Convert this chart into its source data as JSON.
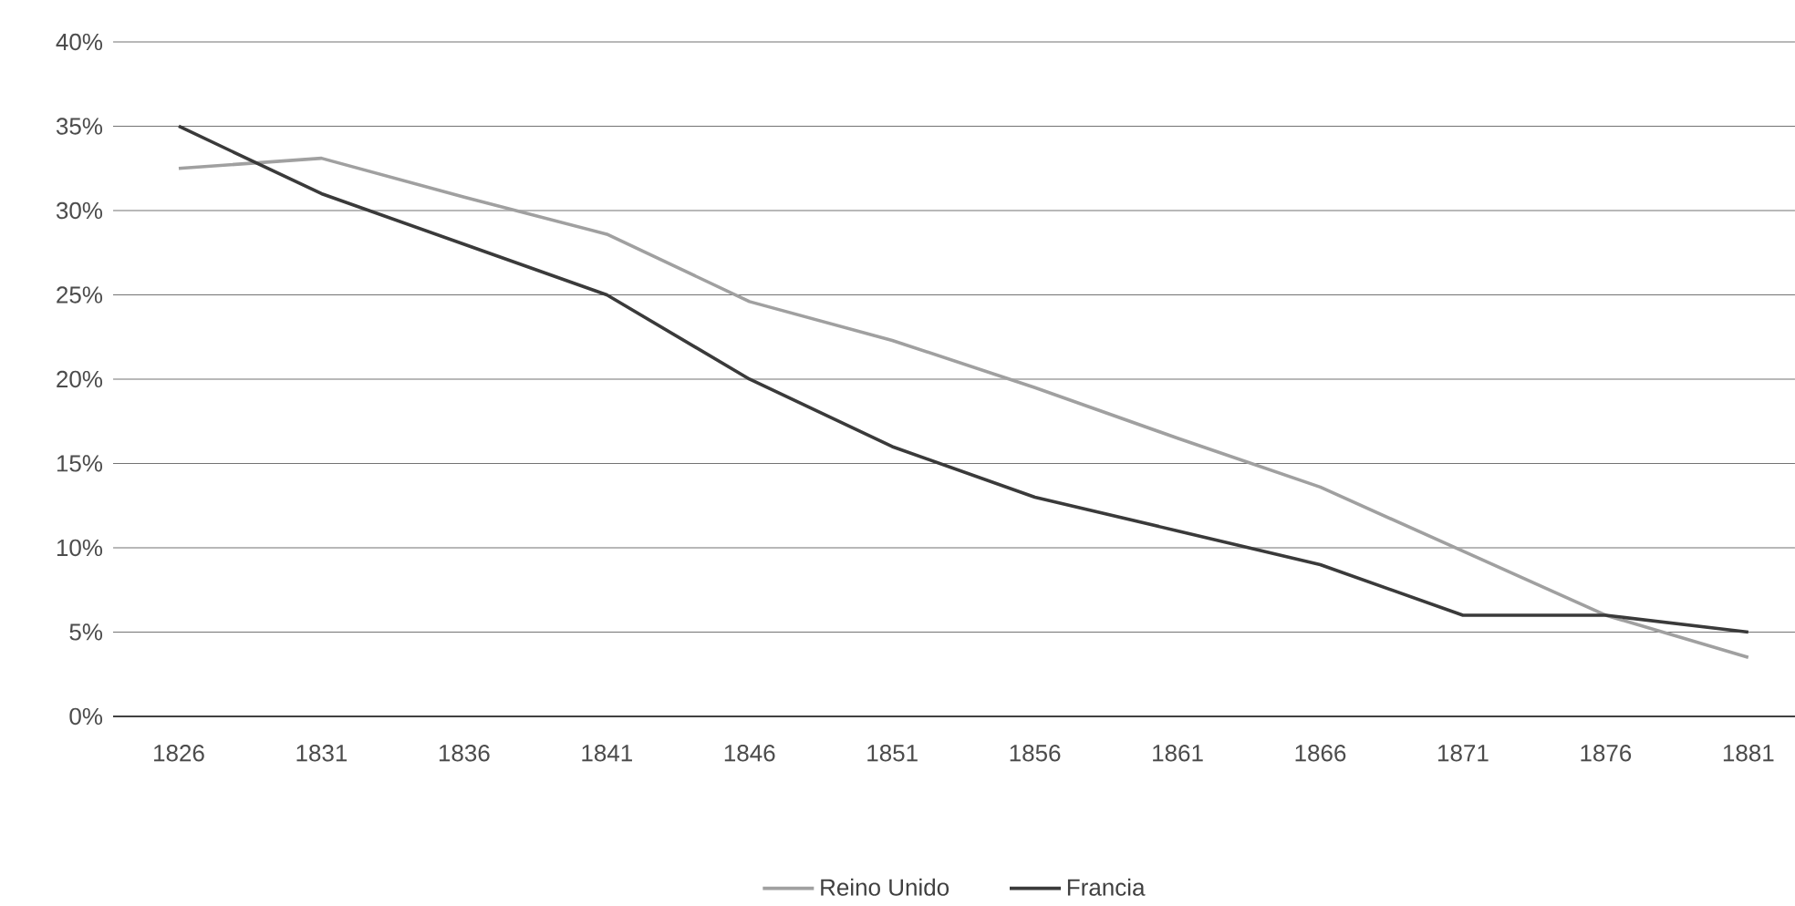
{
  "chart_data": {
    "type": "line",
    "categories": [
      "1826",
      "1831",
      "1836",
      "1841",
      "1846",
      "1851",
      "1856",
      "1861",
      "1866",
      "1871",
      "1876",
      "1881"
    ],
    "series": [
      {
        "name": "Reino Unido",
        "color": "#a0a0a0",
        "values": [
          32.5,
          33.1,
          30.8,
          28.6,
          24.6,
          22.3,
          19.5,
          16.5,
          13.6,
          9.8,
          6,
          3.5
        ]
      },
      {
        "name": "Francia",
        "color": "#3a3a3a",
        "values": [
          35,
          31,
          28,
          25,
          20,
          16,
          13,
          11,
          9,
          6,
          6,
          5
        ]
      }
    ],
    "ylim": [
      0,
      40
    ],
    "yticks": [
      {
        "value": 0,
        "label": "0%"
      },
      {
        "value": 5,
        "label": "5%"
      },
      {
        "value": 10,
        "label": "10%"
      },
      {
        "value": 15,
        "label": "15%"
      },
      {
        "value": 20,
        "label": "20%"
      },
      {
        "value": 25,
        "label": "25%"
      },
      {
        "value": 30,
        "label": "30%"
      },
      {
        "value": 35,
        "label": "35%"
      },
      {
        "value": 40,
        "label": "40%"
      }
    ],
    "grid": "y",
    "legend": "bottom",
    "marker": "none",
    "line_style": "solid"
  }
}
